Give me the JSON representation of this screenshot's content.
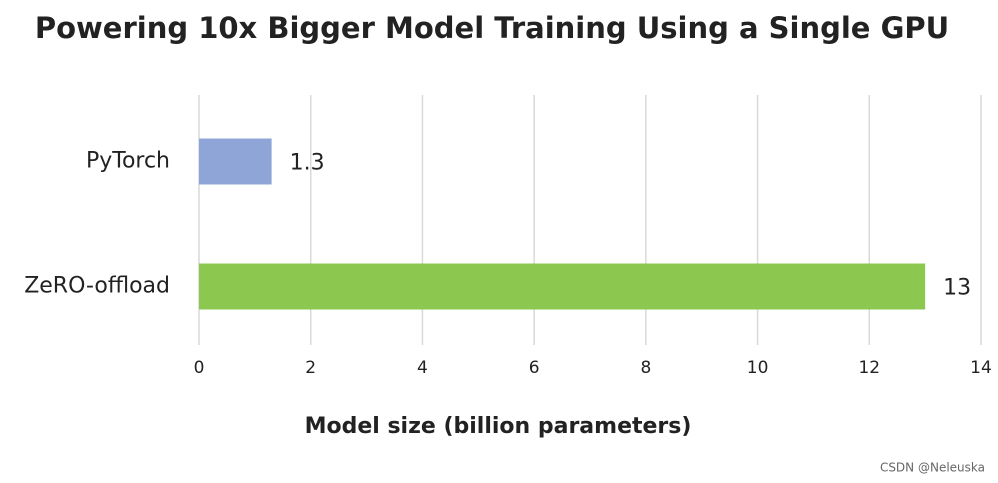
{
  "chart_data": {
    "type": "bar",
    "orientation": "horizontal",
    "title": "Powering 10x Bigger Model Training Using a Single GPU",
    "x_label": "Model size (billion parameters)",
    "categories": [
      "PyTorch",
      "ZeRO-offload"
    ],
    "values": [
      1.3,
      13
    ],
    "colors": [
      "#8fa5d8",
      "#8cc850"
    ],
    "xlim": [
      0,
      14
    ],
    "xticks": [
      0,
      2,
      4,
      6,
      8,
      10,
      12,
      14
    ],
    "grid": true
  },
  "watermark": "CSDN @Neleuska"
}
